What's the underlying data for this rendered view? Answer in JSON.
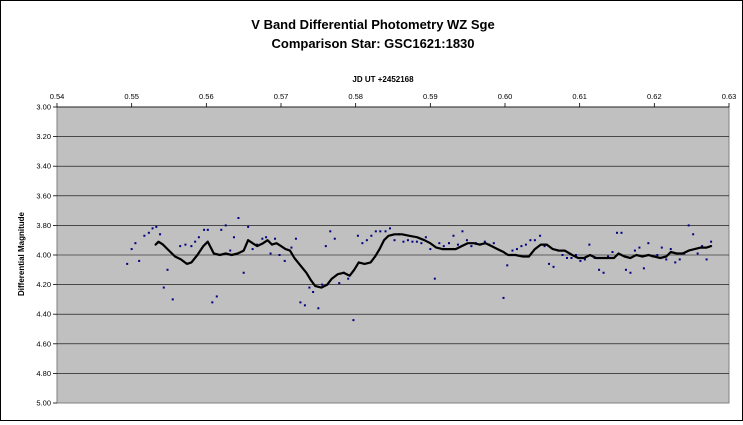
{
  "chart_data": {
    "type": "scatter",
    "title": "V Band Differential Photometry WZ Sge",
    "subtitle": "Comparison Star: GSC1621:1830",
    "xlabel": "JD UT +2452168",
    "ylabel": "Differential Magnitude",
    "xlim": [
      0.54,
      0.63
    ],
    "ylim": [
      3.0,
      5.0
    ],
    "y_reversed": true,
    "x_axis_position": "top",
    "x_ticks": [
      "0.54",
      "0.55",
      "0.56",
      "0.57",
      "0.58",
      "0.59",
      "0.60",
      "0.61",
      "0.62",
      "0.63"
    ],
    "y_ticks": [
      "3.00",
      "3.20",
      "3.40",
      "3.60",
      "3.80",
      "4.00",
      "4.20",
      "4.40",
      "4.60",
      "4.80",
      "5.00"
    ],
    "grid": "horizontal",
    "plot_background": "#c0c0c0",
    "point_color": "#000080",
    "line_color": "#000000",
    "series": [
      {
        "kind": "points",
        "points": [
          [
            0.5494,
            4.06
          ],
          [
            0.55,
            3.96
          ],
          [
            0.5505,
            3.92
          ],
          [
            0.551,
            4.04
          ],
          [
            0.5517,
            3.87
          ],
          [
            0.5523,
            3.85
          ],
          [
            0.5528,
            3.82
          ],
          [
            0.5533,
            3.81
          ],
          [
            0.5538,
            3.86
          ],
          [
            0.5543,
            4.22
          ],
          [
            0.5548,
            4.1
          ],
          [
            0.5555,
            4.3
          ],
          [
            0.5565,
            3.94
          ],
          [
            0.5572,
            3.93
          ],
          [
            0.558,
            3.94
          ],
          [
            0.5585,
            3.91
          ],
          [
            0.559,
            3.88
          ],
          [
            0.5597,
            3.83
          ],
          [
            0.5602,
            3.83
          ],
          [
            0.5608,
            4.32
          ],
          [
            0.5614,
            4.28
          ],
          [
            0.562,
            3.83
          ],
          [
            0.5626,
            3.8
          ],
          [
            0.5632,
            3.97
          ],
          [
            0.5637,
            3.88
          ],
          [
            0.5643,
            3.75
          ],
          [
            0.565,
            4.12
          ],
          [
            0.5656,
            3.81
          ],
          [
            0.5662,
            3.96
          ],
          [
            0.5668,
            3.93
          ],
          [
            0.5675,
            3.89
          ],
          [
            0.568,
            3.88
          ],
          [
            0.5686,
            3.99
          ],
          [
            0.5692,
            3.89
          ],
          [
            0.5698,
            4.0
          ],
          [
            0.5705,
            4.04
          ],
          [
            0.5714,
            3.95
          ],
          [
            0.572,
            3.89
          ],
          [
            0.5726,
            4.32
          ],
          [
            0.5732,
            4.34
          ],
          [
            0.5738,
            4.22
          ],
          [
            0.5743,
            4.25
          ],
          [
            0.575,
            4.36
          ],
          [
            0.5755,
            4.2
          ],
          [
            0.576,
            3.94
          ],
          [
            0.5766,
            3.84
          ],
          [
            0.5772,
            3.89
          ],
          [
            0.5778,
            4.19
          ],
          [
            0.5784,
            4.12
          ],
          [
            0.579,
            4.16
          ],
          [
            0.5797,
            4.44
          ],
          [
            0.5803,
            3.87
          ],
          [
            0.5809,
            3.92
          ],
          [
            0.5815,
            3.9
          ],
          [
            0.5821,
            3.87
          ],
          [
            0.5827,
            3.84
          ],
          [
            0.5833,
            3.84
          ],
          [
            0.584,
            3.84
          ],
          [
            0.5846,
            3.82
          ],
          [
            0.5852,
            3.9
          ],
          [
            0.5858,
            3.86
          ],
          [
            0.5864,
            3.91
          ],
          [
            0.587,
            3.9
          ],
          [
            0.5876,
            3.91
          ],
          [
            0.5882,
            3.91
          ],
          [
            0.5888,
            3.92
          ],
          [
            0.5894,
            3.88
          ],
          [
            0.59,
            3.96
          ],
          [
            0.5906,
            4.16
          ],
          [
            0.5912,
            3.92
          ],
          [
            0.5918,
            3.94
          ],
          [
            0.5925,
            3.92
          ],
          [
            0.5931,
            3.87
          ],
          [
            0.5937,
            3.93
          ],
          [
            0.5943,
            3.84
          ],
          [
            0.5949,
            3.9
          ],
          [
            0.5955,
            3.94
          ],
          [
            0.5961,
            3.92
          ],
          [
            0.5967,
            3.93
          ],
          [
            0.5973,
            3.91
          ],
          [
            0.5979,
            3.93
          ],
          [
            0.5985,
            3.92
          ],
          [
            0.5998,
            4.29
          ],
          [
            0.6003,
            4.07
          ],
          [
            0.601,
            3.97
          ],
          [
            0.6016,
            3.96
          ],
          [
            0.6022,
            3.94
          ],
          [
            0.6028,
            3.93
          ],
          [
            0.6034,
            3.9
          ],
          [
            0.604,
            3.9
          ],
          [
            0.6047,
            3.87
          ],
          [
            0.6053,
            3.94
          ],
          [
            0.6059,
            4.06
          ],
          [
            0.6065,
            4.08
          ],
          [
            0.6071,
            3.97
          ],
          [
            0.6077,
            4.0
          ],
          [
            0.6083,
            4.02
          ],
          [
            0.6089,
            4.02
          ],
          [
            0.6095,
            4.0
          ],
          [
            0.6101,
            4.04
          ],
          [
            0.6107,
            4.03
          ],
          [
            0.6113,
            3.93
          ],
          [
            0.612,
            4.02
          ],
          [
            0.6126,
            4.1
          ],
          [
            0.6132,
            4.12
          ],
          [
            0.6138,
            4.01
          ],
          [
            0.6144,
            3.98
          ],
          [
            0.615,
            3.85
          ],
          [
            0.6156,
            3.85
          ],
          [
            0.6162,
            4.1
          ],
          [
            0.6168,
            4.12
          ],
          [
            0.6174,
            3.97
          ],
          [
            0.618,
            3.95
          ],
          [
            0.6186,
            4.09
          ],
          [
            0.6192,
            3.92
          ],
          [
            0.6198,
            4.01
          ],
          [
            0.6204,
            4.0
          ],
          [
            0.621,
            3.95
          ],
          [
            0.6216,
            4.03
          ],
          [
            0.6222,
            3.96
          ],
          [
            0.6228,
            4.05
          ],
          [
            0.6234,
            4.03
          ],
          [
            0.624,
            3.99
          ],
          [
            0.6246,
            3.8
          ],
          [
            0.6252,
            3.86
          ],
          [
            0.6258,
            3.99
          ],
          [
            0.6264,
            3.94
          ],
          [
            0.627,
            4.03
          ],
          [
            0.6276,
            3.91
          ]
        ]
      },
      {
        "kind": "line",
        "points": [
          [
            0.5532,
            3.93
          ],
          [
            0.5536,
            3.91
          ],
          [
            0.5542,
            3.93
          ],
          [
            0.555,
            3.97
          ],
          [
            0.5558,
            4.01
          ],
          [
            0.5566,
            4.03
          ],
          [
            0.5574,
            4.06
          ],
          [
            0.558,
            4.05
          ],
          [
            0.5588,
            4.0
          ],
          [
            0.5596,
            3.94
          ],
          [
            0.5602,
            3.91
          ],
          [
            0.561,
            3.99
          ],
          [
            0.5618,
            4.0
          ],
          [
            0.5626,
            3.99
          ],
          [
            0.5634,
            4.0
          ],
          [
            0.5642,
            3.99
          ],
          [
            0.565,
            3.97
          ],
          [
            0.5656,
            3.9
          ],
          [
            0.5662,
            3.92
          ],
          [
            0.5668,
            3.94
          ],
          [
            0.5676,
            3.92
          ],
          [
            0.5682,
            3.9
          ],
          [
            0.5688,
            3.93
          ],
          [
            0.5694,
            3.92
          ],
          [
            0.57,
            3.94
          ],
          [
            0.5706,
            3.96
          ],
          [
            0.5712,
            3.97
          ],
          [
            0.5718,
            4.02
          ],
          [
            0.5726,
            4.07
          ],
          [
            0.5734,
            4.12
          ],
          [
            0.574,
            4.17
          ],
          [
            0.5746,
            4.21
          ],
          [
            0.5754,
            4.22
          ],
          [
            0.5762,
            4.2
          ],
          [
            0.5768,
            4.16
          ],
          [
            0.5776,
            4.13
          ],
          [
            0.5784,
            4.12
          ],
          [
            0.5792,
            4.14
          ],
          [
            0.5798,
            4.1
          ],
          [
            0.5804,
            4.05
          ],
          [
            0.5812,
            4.06
          ],
          [
            0.582,
            4.05
          ],
          [
            0.5826,
            4.01
          ],
          [
            0.5832,
            3.96
          ],
          [
            0.5838,
            3.9
          ],
          [
            0.5844,
            3.87
          ],
          [
            0.5852,
            3.86
          ],
          [
            0.5862,
            3.86
          ],
          [
            0.5872,
            3.87
          ],
          [
            0.5882,
            3.88
          ],
          [
            0.5892,
            3.9
          ],
          [
            0.59,
            3.92
          ],
          [
            0.5908,
            3.95
          ],
          [
            0.5916,
            3.96
          ],
          [
            0.5926,
            3.96
          ],
          [
            0.5934,
            3.96
          ],
          [
            0.5942,
            3.94
          ],
          [
            0.595,
            3.92
          ],
          [
            0.5958,
            3.92
          ],
          [
            0.5966,
            3.93
          ],
          [
            0.5974,
            3.92
          ],
          [
            0.5982,
            3.94
          ],
          [
            0.599,
            3.96
          ],
          [
            0.5998,
            3.98
          ],
          [
            0.6004,
            4.0
          ],
          [
            0.6014,
            4.0
          ],
          [
            0.6024,
            4.01
          ],
          [
            0.6032,
            4.01
          ],
          [
            0.604,
            3.96
          ],
          [
            0.6048,
            3.93
          ],
          [
            0.6056,
            3.93
          ],
          [
            0.6064,
            3.96
          ],
          [
            0.6072,
            3.97
          ],
          [
            0.608,
            3.97
          ],
          [
            0.609,
            4.0
          ],
          [
            0.6098,
            4.02
          ],
          [
            0.6106,
            4.02
          ],
          [
            0.6114,
            4.0
          ],
          [
            0.6122,
            4.02
          ],
          [
            0.613,
            4.02
          ],
          [
            0.6138,
            4.02
          ],
          [
            0.6146,
            4.02
          ],
          [
            0.6152,
            3.99
          ],
          [
            0.616,
            4.01
          ],
          [
            0.6168,
            4.02
          ],
          [
            0.6176,
            4.0
          ],
          [
            0.6184,
            4.01
          ],
          [
            0.6192,
            4.0
          ],
          [
            0.62,
            4.01
          ],
          [
            0.6208,
            4.02
          ],
          [
            0.6216,
            4.01
          ],
          [
            0.6222,
            3.98
          ],
          [
            0.623,
            3.99
          ],
          [
            0.6238,
            3.99
          ],
          [
            0.6246,
            3.97
          ],
          [
            0.6254,
            3.96
          ],
          [
            0.6262,
            3.95
          ],
          [
            0.627,
            3.95
          ],
          [
            0.6276,
            3.94
          ]
        ]
      }
    ]
  }
}
